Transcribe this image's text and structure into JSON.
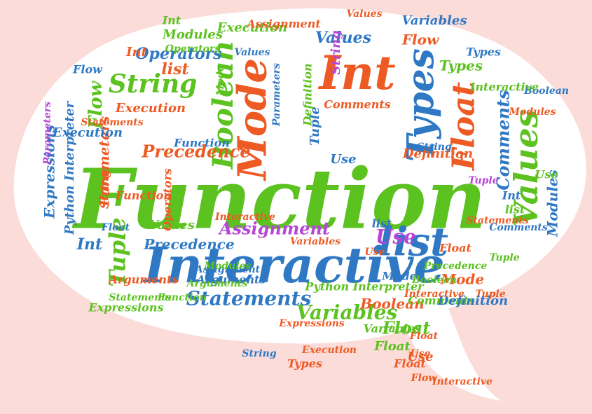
{
  "colors": {
    "background": "#fbdcd8",
    "bubble": "#ffffff",
    "green": "#5cc21f",
    "orange": "#ee5a24",
    "blue": "#2f78c4",
    "purple": "#b546d6"
  },
  "words": [
    {
      "text": "Function",
      "color": "green"
    },
    {
      "text": "Interactive",
      "color": "blue"
    },
    {
      "text": "Int",
      "color": "orange"
    },
    {
      "text": "Mode",
      "color": "orange"
    },
    {
      "text": "list",
      "color": "blue"
    },
    {
      "text": "Types",
      "color": "blue"
    },
    {
      "text": "Values",
      "color": "green"
    },
    {
      "text": "Float",
      "color": "orange"
    },
    {
      "text": "Boolean",
      "color": "green"
    },
    {
      "text": "String",
      "color": "green"
    },
    {
      "text": "Statements",
      "color": "blue"
    },
    {
      "text": "Variables",
      "color": "green"
    },
    {
      "text": "Assignment",
      "color": "purple"
    },
    {
      "text": "Precedence",
      "color": "orange"
    },
    {
      "text": "Operators",
      "color": "blue"
    },
    {
      "text": "Execution",
      "color": "orange"
    },
    {
      "text": "Expressions",
      "color": "blue"
    },
    {
      "text": "Python Interpreter",
      "color": "blue"
    },
    {
      "text": "Parameters",
      "color": "orange"
    },
    {
      "text": "Tuple",
      "color": "green"
    },
    {
      "text": "Flow",
      "color": "green"
    },
    {
      "text": "Use",
      "color": "purple"
    },
    {
      "text": "Comments",
      "color": "blue"
    },
    {
      "text": "Modules",
      "color": "green"
    },
    {
      "text": "Definition",
      "color": "orange"
    },
    {
      "text": "Arguments",
      "color": "blue"
    },
    {
      "text": "Boolean",
      "color": "orange"
    },
    {
      "text": "Mode",
      "color": "orange"
    },
    {
      "text": "Values",
      "color": "blue"
    },
    {
      "text": "Variables",
      "color": "blue"
    },
    {
      "text": "Function",
      "color": "blue"
    },
    {
      "text": "Float",
      "color": "green"
    },
    {
      "text": "Int",
      "color": "blue"
    },
    {
      "text": "Use",
      "color": "orange"
    },
    {
      "text": "Statements",
      "color": "orange"
    },
    {
      "text": "Interactive",
      "color": "orange"
    },
    {
      "text": "Flow",
      "color": "orange"
    },
    {
      "text": "Tuple",
      "color": "blue"
    },
    {
      "text": "Execution",
      "color": "green"
    },
    {
      "text": "Parameters",
      "color": "purple"
    },
    {
      "text": "Types",
      "color": "green"
    },
    {
      "text": "Modules",
      "color": "blue"
    },
    {
      "text": "list",
      "color": "orange"
    },
    {
      "text": "Use",
      "color": "blue"
    },
    {
      "text": "Values",
      "color": "green"
    },
    {
      "text": "Float",
      "color": "orange"
    },
    {
      "text": "Assignment",
      "color": "orange"
    },
    {
      "text": "Comments",
      "color": "green"
    },
    {
      "text": "String",
      "color": "purple"
    },
    {
      "text": "Precedence",
      "color": "blue"
    },
    {
      "text": "Definition",
      "color": "green"
    },
    {
      "text": "Arguments",
      "color": "orange"
    },
    {
      "text": "Expressions",
      "color": "green"
    },
    {
      "text": "Operators",
      "color": "orange"
    },
    {
      "text": "Boolean",
      "color": "blue"
    },
    {
      "text": "Int",
      "color": "green"
    },
    {
      "text": "Mode",
      "color": "blue"
    },
    {
      "text": "Interactive",
      "color": "green"
    },
    {
      "text": "Tuple",
      "color": "orange"
    },
    {
      "text": "Float",
      "color": "blue"
    },
    {
      "text": "Execution",
      "color": "blue"
    },
    {
      "text": "Variables",
      "color": "orange"
    },
    {
      "text": "Flow",
      "color": "blue"
    },
    {
      "text": "list",
      "color": "green"
    },
    {
      "text": "Modules",
      "color": "orange"
    },
    {
      "text": "Use",
      "color": "green"
    },
    {
      "text": "Statements",
      "color": "green"
    },
    {
      "text": "String",
      "color": "orange"
    },
    {
      "text": "Function",
      "color": "orange"
    },
    {
      "text": "Types",
      "color": "orange"
    },
    {
      "text": "Python Interpreter",
      "color": "green"
    },
    {
      "text": "Values",
      "color": "orange"
    },
    {
      "text": "Comments",
      "color": "orange"
    },
    {
      "text": "Definition",
      "color": "blue"
    },
    {
      "text": "Float",
      "color": "green"
    },
    {
      "text": "Int",
      "color": "orange"
    },
    {
      "text": "Precedence",
      "color": "green"
    },
    {
      "text": "Assignment",
      "color": "blue"
    },
    {
      "text": "Boolean",
      "color": "green"
    },
    {
      "text": "Operators",
      "color": "green"
    },
    {
      "text": "Expressions",
      "color": "orange"
    },
    {
      "text": "Mode",
      "color": "green"
    },
    {
      "text": "Parameters",
      "color": "blue"
    },
    {
      "text": "Arguments",
      "color": "green"
    },
    {
      "text": "Interactive",
      "color": "orange"
    },
    {
      "text": "Tuple",
      "color": "green"
    },
    {
      "text": "Flow",
      "color": "orange"
    },
    {
      "text": "list",
      "color": "blue"
    },
    {
      "text": "Use",
      "color": "orange"
    },
    {
      "text": "String",
      "color": "blue"
    },
    {
      "text": "Values",
      "color": "blue"
    },
    {
      "text": "Execution",
      "color": "orange"
    },
    {
      "text": "Function",
      "color": "green"
    },
    {
      "text": "Float",
      "color": "orange"
    },
    {
      "text": "Int",
      "color": "blue"
    },
    {
      "text": "Statements",
      "color": "orange"
    },
    {
      "text": "Modules",
      "color": "green"
    },
    {
      "text": "Types",
      "color": "blue"
    },
    {
      "text": "Variables",
      "color": "green"
    },
    {
      "text": "Comments",
      "color": "blue"
    },
    {
      "text": "Interactive",
      "color": "orange"
    },
    {
      "text": "String",
      "color": "blue"
    },
    {
      "text": "Tuple",
      "color": "purple"
    },
    {
      "text": "Use",
      "color": "orange"
    },
    {
      "text": "Float",
      "color": "orange"
    }
  ]
}
